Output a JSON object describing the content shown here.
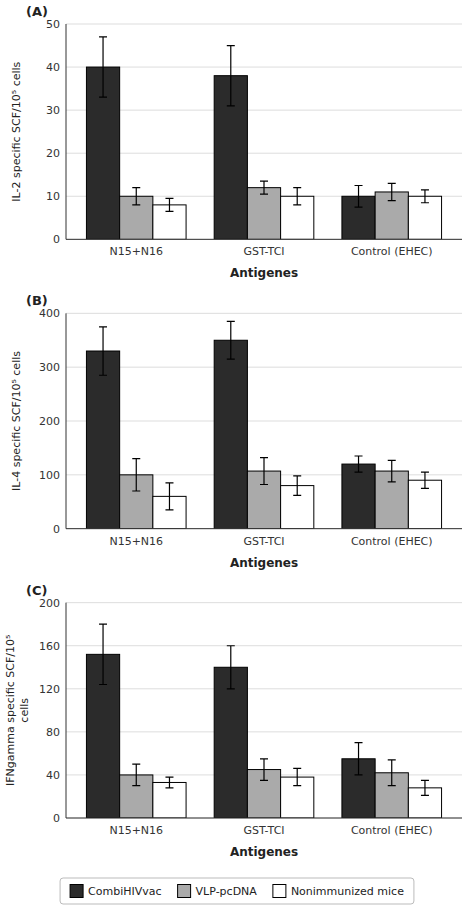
{
  "chart_data": [
    {
      "type": "bar",
      "title": "(A)",
      "ylabel": "IL-2 specific SCF/10⁵ cells",
      "xlabel": "Antigenes",
      "categories": [
        "N15+N16",
        "GST-TCI",
        "Control (EHEC)"
      ],
      "series": [
        {
          "name": "CombiHIVvac",
          "color": "#2b2b2b",
          "values": [
            40.0,
            38.0,
            10.0
          ],
          "errors": [
            7.0,
            7.0,
            2.5
          ]
        },
        {
          "name": "VLP-pcDNA",
          "color": "#aaaaaa",
          "values": [
            10.0,
            12.0,
            11.0
          ],
          "errors": [
            2.0,
            1.5,
            2.0
          ]
        },
        {
          "name": "Nonimmunized mice",
          "color": "#ffffff",
          "values": [
            8.0,
            10.0,
            10.0
          ],
          "errors": [
            1.5,
            2.0,
            1.5
          ]
        }
      ],
      "ylim": [
        0,
        50
      ],
      "yticks": [
        0,
        10,
        20,
        30,
        40,
        50
      ],
      "grid": true,
      "legend": "bottom"
    },
    {
      "type": "bar",
      "title": "(B)",
      "ylabel": "IL-4 specific SCF/10⁵ cells",
      "xlabel": "Antigenes",
      "categories": [
        "N15+N16",
        "GST-TCI",
        "Control (EHEC)"
      ],
      "series": [
        {
          "name": "CombiHIVvac",
          "color": "#2b2b2b",
          "values": [
            330,
            350,
            120
          ],
          "errors": [
            45,
            35,
            15
          ]
        },
        {
          "name": "VLP-pcDNA",
          "color": "#aaaaaa",
          "values": [
            100,
            107,
            107
          ],
          "errors": [
            30,
            25,
            20
          ]
        },
        {
          "name": "Nonimmunized mice",
          "color": "#ffffff",
          "values": [
            60,
            80,
            90
          ],
          "errors": [
            25,
            18,
            15
          ]
        }
      ],
      "ylim": [
        0,
        400
      ],
      "yticks": [
        0,
        100,
        200,
        300,
        400
      ],
      "grid": true
    },
    {
      "type": "bar",
      "title": "(C)",
      "ylabel": "IFNgamma specific SCF/10⁵\ncells",
      "xlabel": "Antigenes",
      "categories": [
        "N15+N16",
        "GST-TCI",
        "Control (EHEC)"
      ],
      "series": [
        {
          "name": "CombiHIVvac",
          "color": "#2b2b2b",
          "values": [
            152,
            140,
            55
          ],
          "errors": [
            28,
            20,
            15
          ]
        },
        {
          "name": "VLP-pcDNA",
          "color": "#aaaaaa",
          "values": [
            40,
            45,
            42
          ],
          "errors": [
            10,
            10,
            12
          ]
        },
        {
          "name": "Nonimmunized mice",
          "color": "#ffffff",
          "values": [
            33,
            38,
            28
          ],
          "errors": [
            5,
            8,
            7
          ]
        }
      ],
      "ylim": [
        0,
        200
      ],
      "yticks": [
        0,
        40,
        80,
        120,
        160,
        200
      ],
      "grid": true
    }
  ]
}
